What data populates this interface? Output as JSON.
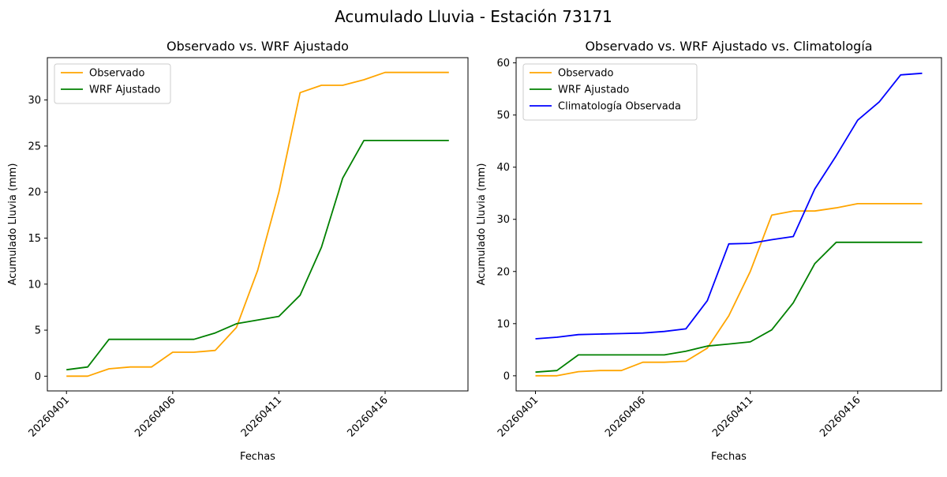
{
  "figure": {
    "title": "Acumulado Lluvia - Estación 73171"
  },
  "chart_data": [
    {
      "type": "line",
      "title": "Observado vs. WRF Ajustado",
      "xlabel": "Fechas",
      "ylabel": "Acumulado Lluvia (mm)",
      "x": [
        1,
        2,
        3,
        4,
        5,
        6,
        7,
        8,
        9,
        10,
        11,
        12,
        13,
        14,
        15,
        16,
        17,
        18,
        19
      ],
      "xticks": [
        {
          "x": 1,
          "label": "20260401"
        },
        {
          "x": 6,
          "label": "20260406"
        },
        {
          "x": 11,
          "label": "20260411"
        },
        {
          "x": 16,
          "label": "20260416"
        }
      ],
      "xlim": [
        0.1,
        19.9
      ],
      "ylim": [
        -1.6,
        34.6
      ],
      "yticks": [
        0,
        5,
        10,
        15,
        20,
        25,
        30
      ],
      "legend_loc": "upper-left",
      "series": [
        {
          "name": "Observado",
          "color": "#FFA500",
          "values": [
            0,
            0,
            0.8,
            1.0,
            1.0,
            2.6,
            2.6,
            2.8,
            5.3,
            11.5,
            20.0,
            30.8,
            31.6,
            31.6,
            32.2,
            33.0,
            33.0,
            33.0,
            33.0
          ]
        },
        {
          "name": "WRF Ajustado",
          "color": "#008000",
          "values": [
            0.7,
            1.0,
            4.0,
            4.0,
            4.0,
            4.0,
            4.0,
            4.7,
            5.7,
            6.1,
            6.5,
            8.8,
            14.0,
            21.5,
            25.6,
            25.6,
            25.6,
            25.6,
            25.6
          ]
        }
      ]
    },
    {
      "type": "line",
      "title": "Observado vs. WRF Ajustado vs. Climatología",
      "xlabel": "Fechas",
      "ylabel": "Acumulado Lluvia (mm)",
      "x": [
        1,
        2,
        3,
        4,
        5,
        6,
        7,
        8,
        9,
        10,
        11,
        12,
        13,
        14,
        15,
        16,
        17,
        18,
        19
      ],
      "xticks": [
        {
          "x": 1,
          "label": "20260401"
        },
        {
          "x": 6,
          "label": "20260406"
        },
        {
          "x": 11,
          "label": "20260411"
        },
        {
          "x": 16,
          "label": "20260416"
        }
      ],
      "xlim": [
        0.1,
        19.9
      ],
      "ylim": [
        -2.9,
        61.0
      ],
      "yticks": [
        0,
        10,
        20,
        30,
        40,
        50,
        60
      ],
      "legend_loc": "upper-left",
      "series": [
        {
          "name": "Observado",
          "color": "#FFA500",
          "values": [
            0,
            0,
            0.8,
            1.0,
            1.0,
            2.6,
            2.6,
            2.8,
            5.3,
            11.5,
            20.0,
            30.8,
            31.6,
            31.6,
            32.2,
            33.0,
            33.0,
            33.0,
            33.0
          ]
        },
        {
          "name": "WRF Ajustado",
          "color": "#008000",
          "values": [
            0.7,
            1.0,
            4.0,
            4.0,
            4.0,
            4.0,
            4.0,
            4.7,
            5.7,
            6.1,
            6.5,
            8.8,
            14.0,
            21.5,
            25.6,
            25.6,
            25.6,
            25.6,
            25.6
          ]
        },
        {
          "name": "Climatología Observada",
          "color": "#0000FF",
          "values": [
            7.1,
            7.4,
            7.9,
            8.0,
            8.1,
            8.2,
            8.5,
            9.0,
            14.4,
            25.3,
            25.4,
            26.1,
            26.7,
            35.8,
            42.2,
            49.0,
            52.5,
            57.7,
            58.0
          ]
        }
      ]
    }
  ]
}
